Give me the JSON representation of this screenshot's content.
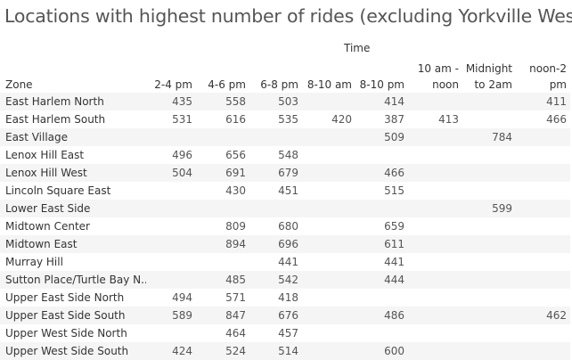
{
  "chart_data": {
    "type": "table",
    "title": "Locations with highest number of rides (excluding Yorkville West)",
    "column_group_label": "Time",
    "row_header": "Zone",
    "columns": [
      "2-4 pm",
      "4-6 pm",
      "6-8 pm",
      "8-10 am",
      "8-10 pm",
      "10 am - noon",
      "Midnight to 2am",
      "noon-2 pm"
    ],
    "column_lines": [
      [
        "2-4 pm"
      ],
      [
        "4-6 pm"
      ],
      [
        "6-8 pm"
      ],
      [
        "8-10 am"
      ],
      [
        "8-10 pm"
      ],
      [
        "10 am -",
        "noon"
      ],
      [
        "Midnight",
        "to 2am"
      ],
      [
        "noon-2",
        "pm"
      ]
    ],
    "rows": [
      {
        "zone": "East Harlem North",
        "values": [
          "435",
          "558",
          "503",
          "",
          "414",
          "",
          "",
          "411"
        ]
      },
      {
        "zone": "East Harlem South",
        "values": [
          "531",
          "616",
          "535",
          "420",
          "387",
          "413",
          "",
          "466"
        ]
      },
      {
        "zone": "East Village",
        "values": [
          "",
          "",
          "",
          "",
          "509",
          "",
          "784",
          ""
        ]
      },
      {
        "zone": "Lenox Hill East",
        "values": [
          "496",
          "656",
          "548",
          "",
          "",
          "",
          "",
          ""
        ]
      },
      {
        "zone": "Lenox Hill West",
        "values": [
          "504",
          "691",
          "679",
          "",
          "466",
          "",
          "",
          ""
        ]
      },
      {
        "zone": "Lincoln Square East",
        "values": [
          "",
          "430",
          "451",
          "",
          "515",
          "",
          "",
          ""
        ]
      },
      {
        "zone": "Lower East Side",
        "values": [
          "",
          "",
          "",
          "",
          "",
          "",
          "599",
          ""
        ]
      },
      {
        "zone": "Midtown Center",
        "values": [
          "",
          "809",
          "680",
          "",
          "659",
          "",
          "",
          ""
        ]
      },
      {
        "zone": "Midtown East",
        "values": [
          "",
          "894",
          "696",
          "",
          "611",
          "",
          "",
          ""
        ]
      },
      {
        "zone": "Murray Hill",
        "values": [
          "",
          "",
          "441",
          "",
          "441",
          "",
          "",
          ""
        ]
      },
      {
        "zone": "Sutton Place/Turtle Bay N..",
        "values": [
          "",
          "485",
          "542",
          "",
          "444",
          "",
          "",
          ""
        ]
      },
      {
        "zone": "Upper East Side North",
        "values": [
          "494",
          "571",
          "418",
          "",
          "",
          "",
          "",
          ""
        ]
      },
      {
        "zone": "Upper East Side South",
        "values": [
          "589",
          "847",
          "676",
          "",
          "486",
          "",
          "",
          "462"
        ]
      },
      {
        "zone": "Upper West Side North",
        "values": [
          "",
          "464",
          "457",
          "",
          "",
          "",
          "",
          ""
        ]
      },
      {
        "zone": "Upper West Side South",
        "values": [
          "424",
          "524",
          "514",
          "",
          "600",
          "",
          "",
          ""
        ]
      }
    ]
  }
}
